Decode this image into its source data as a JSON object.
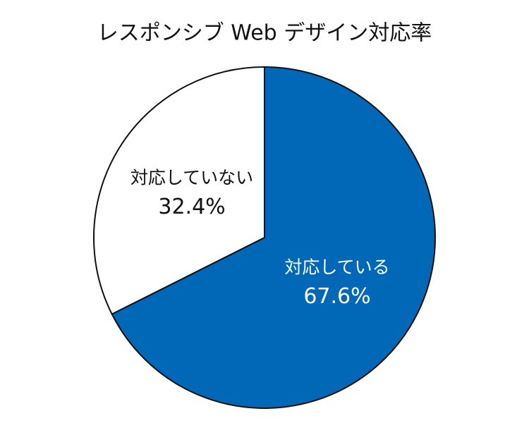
{
  "chart_data": {
    "type": "pie",
    "title": "レスポンシブ Web デザイン対応率",
    "categories": [
      "対応している",
      "対応していない"
    ],
    "values": [
      67.6,
      32.4
    ],
    "value_labels": [
      "67.6%",
      "32.4%"
    ],
    "colors": [
      "#0068b7",
      "#ffffff"
    ]
  }
}
